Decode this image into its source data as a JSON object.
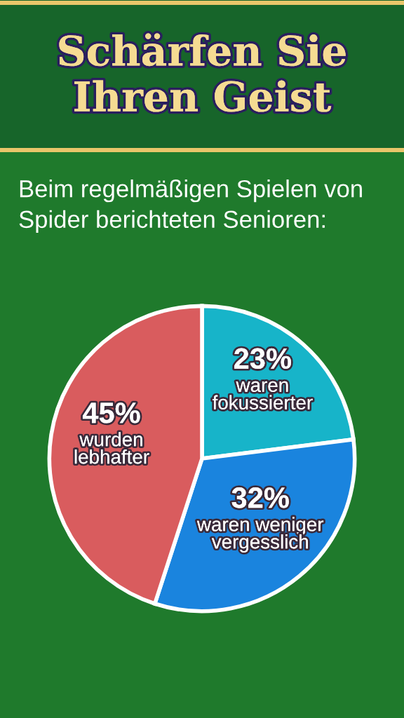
{
  "chart_data": {
    "type": "pie",
    "title": "Schärfen Sie Ihren Geist",
    "subtitle": "Beim regelmäßigen Spielen von Spider berichteten Senioren:",
    "categories": [
      "waren fokussierter",
      "waren weniger vergesslich",
      "wurden lebhafter"
    ],
    "values": [
      23,
      32,
      45
    ],
    "colors": [
      "#17b4c9",
      "#1a84de",
      "#d95c5e"
    ],
    "value_labels": [
      "23%",
      "32%",
      "45%"
    ],
    "legend": false
  }
}
